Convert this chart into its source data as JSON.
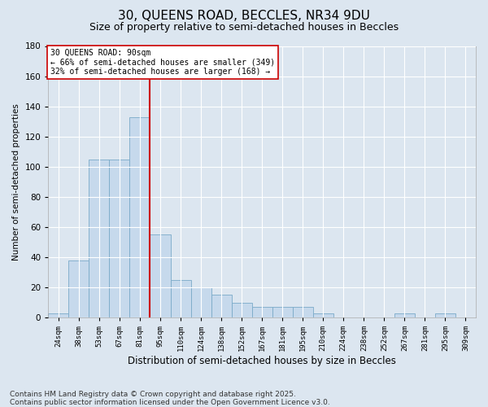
{
  "title": "30, QUEENS ROAD, BECCLES, NR34 9DU",
  "subtitle": "Size of property relative to semi-detached houses in Beccles",
  "xlabel": "Distribution of semi-detached houses by size in Beccles",
  "ylabel": "Number of semi-detached properties",
  "categories": [
    "24sqm",
    "38sqm",
    "53sqm",
    "67sqm",
    "81sqm",
    "95sqm",
    "110sqm",
    "124sqm",
    "138sqm",
    "152sqm",
    "167sqm",
    "181sqm",
    "195sqm",
    "210sqm",
    "224sqm",
    "238sqm",
    "252sqm",
    "267sqm",
    "281sqm",
    "295sqm",
    "309sqm"
  ],
  "values": [
    3,
    38,
    105,
    105,
    133,
    55,
    25,
    20,
    15,
    10,
    7,
    7,
    7,
    3,
    0,
    0,
    0,
    3,
    0,
    3,
    0
  ],
  "bar_color": "#c6d9ec",
  "bar_edge_color": "#7aaac8",
  "vline_color": "#cc0000",
  "annotation_text": "30 QUEENS ROAD: 90sqm\n← 66% of semi-detached houses are smaller (349)\n32% of semi-detached houses are larger (168) →",
  "annotation_box_color": "#ffffff",
  "annotation_box_edge": "#cc0000",
  "ylim": [
    0,
    180
  ],
  "yticks": [
    0,
    20,
    40,
    60,
    80,
    100,
    120,
    140,
    160,
    180
  ],
  "footer": "Contains HM Land Registry data © Crown copyright and database right 2025.\nContains public sector information licensed under the Open Government Licence v3.0.",
  "background_color": "#dce6f0",
  "plot_background": "#dce6f0",
  "title_fontsize": 11,
  "subtitle_fontsize": 9,
  "footer_fontsize": 6.5,
  "vline_pos": 4.5
}
